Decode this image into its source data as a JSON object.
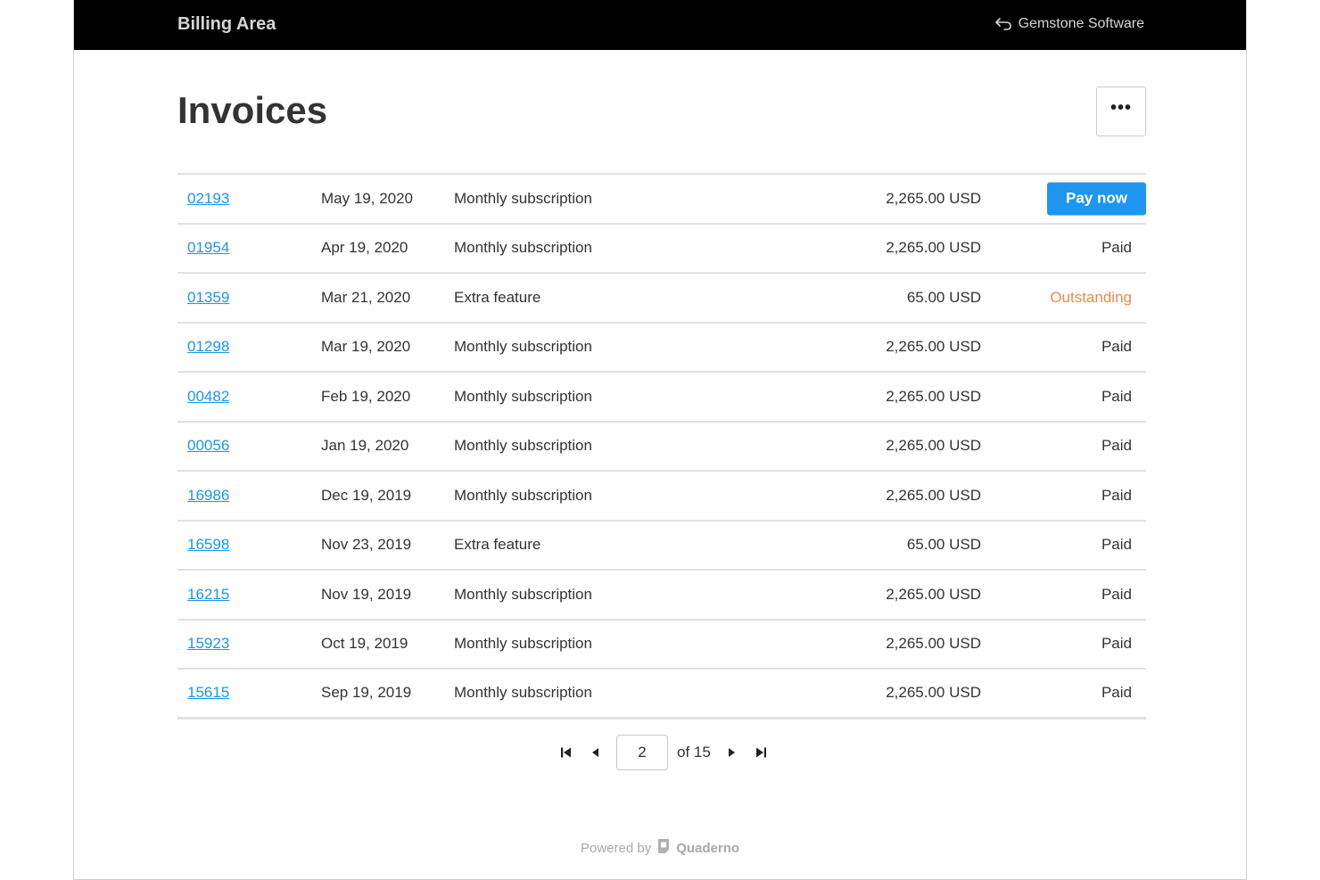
{
  "header": {
    "app_title": "Billing Area",
    "back_label": "Gemstone Software"
  },
  "main": {
    "title": "Invoices",
    "more_button_label": "•••"
  },
  "invoices": [
    {
      "number": "02193",
      "date": "May 19, 2020",
      "description": "Monthly subscription",
      "amount": "2,265.00 USD",
      "status": "Pay now",
      "status_type": "action"
    },
    {
      "number": "01954",
      "date": "Apr 19, 2020",
      "description": "Monthly subscription",
      "amount": "2,265.00 USD",
      "status": "Paid",
      "status_type": "paid"
    },
    {
      "number": "01359",
      "date": "Mar 21, 2020",
      "description": "Extra feature",
      "amount": "65.00 USD",
      "status": "Outstanding",
      "status_type": "outstanding"
    },
    {
      "number": "01298",
      "date": "Mar 19, 2020",
      "description": "Monthly subscription",
      "amount": "2,265.00 USD",
      "status": "Paid",
      "status_type": "paid"
    },
    {
      "number": "00482",
      "date": "Feb 19, 2020",
      "description": "Monthly subscription",
      "amount": "2,265.00 USD",
      "status": "Paid",
      "status_type": "paid"
    },
    {
      "number": "00056",
      "date": "Jan 19, 2020",
      "description": "Monthly subscription",
      "amount": "2,265.00 USD",
      "status": "Paid",
      "status_type": "paid"
    },
    {
      "number": "16986",
      "date": "Dec 19, 2019",
      "description": "Monthly subscription",
      "amount": "2,265.00 USD",
      "status": "Paid",
      "status_type": "paid"
    },
    {
      "number": "16598",
      "date": "Nov 23, 2019",
      "description": "Extra feature",
      "amount": "65.00 USD",
      "status": "Paid",
      "status_type": "paid"
    },
    {
      "number": "16215",
      "date": "Nov 19, 2019",
      "description": "Monthly subscription",
      "amount": "2,265.00 USD",
      "status": "Paid",
      "status_type": "paid"
    },
    {
      "number": "15923",
      "date": "Oct 19, 2019",
      "description": "Monthly subscription",
      "amount": "2,265.00 USD",
      "status": "Paid",
      "status_type": "paid"
    },
    {
      "number": "15615",
      "date": "Sep 19, 2019",
      "description": "Monthly subscription",
      "amount": "2,265.00 USD",
      "status": "Paid",
      "status_type": "paid"
    }
  ],
  "pagination": {
    "current_page": "2",
    "of_label": "of 15"
  },
  "footer": {
    "powered_label": "Powered by",
    "brand": "Quaderno"
  },
  "colors": {
    "topbar": "#000000",
    "link": "#1a96e8",
    "pay_button": "#1e96f0",
    "outstanding": "#e88a4a"
  },
  "icons": [
    "back-arrow-icon",
    "more-dots-icon",
    "first-page-icon",
    "prev-page-icon",
    "next-page-icon",
    "last-page-icon",
    "quaderno-logo-icon"
  ]
}
